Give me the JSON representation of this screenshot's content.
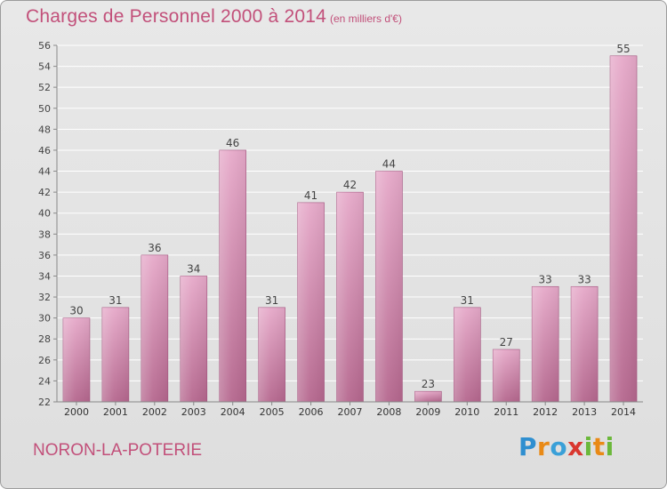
{
  "title": "Charges de Personnel 2000 à 2014",
  "subtitle": "(en milliers d'€)",
  "commune": "NORON-LA-POTERIE",
  "logo": "Proxiti",
  "colors": {
    "accent": "#c2507a",
    "bar_light": "#e6a9c9",
    "bar_dark": "#b5678e",
    "background": "#e3e3e3",
    "grid": "#ffffff"
  },
  "chart_data": {
    "type": "bar",
    "categories": [
      "2000",
      "2001",
      "2002",
      "2003",
      "2004",
      "2005",
      "2006",
      "2007",
      "2008",
      "2009",
      "2010",
      "2011",
      "2012",
      "2013",
      "2014"
    ],
    "values": [
      30,
      31,
      36,
      34,
      46,
      31,
      41,
      42,
      44,
      23,
      31,
      27,
      33,
      33,
      55
    ],
    "ylim": [
      22,
      56
    ],
    "yticks": [
      22,
      24,
      26,
      28,
      30,
      32,
      34,
      36,
      38,
      40,
      42,
      44,
      46,
      48,
      50,
      52,
      54,
      56
    ],
    "grid": true,
    "xlabel": "",
    "ylabel": ""
  }
}
